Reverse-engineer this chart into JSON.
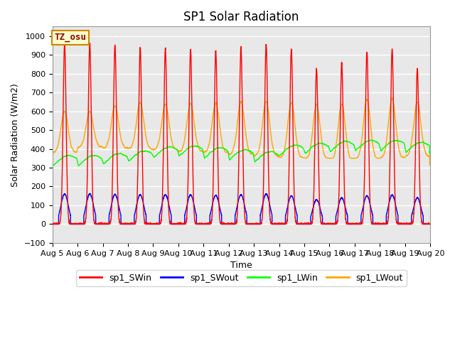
{
  "title": "SP1 Solar Radiation",
  "ylabel": "Solar Radiation (W/m2)",
  "xlabel": "Time",
  "ylim": [
    -100,
    1050
  ],
  "x_tick_labels": [
    "Aug 5",
    "Aug 6",
    "Aug 7",
    "Aug 8",
    "Aug 9",
    "Aug 10",
    "Aug 11",
    "Aug 12",
    "Aug 13",
    "Aug 14",
    "Aug 15",
    "Aug 16",
    "Aug 17",
    "Aug 18",
    "Aug 19",
    "Aug 20"
  ],
  "annotation_text": "TZ_osu",
  "annotation_bg": "#ffffcc",
  "annotation_border": "#cc8800",
  "background_color": "#e8e8e8",
  "grid_color": "white",
  "colors": {
    "sp1_SWin": "red",
    "sp1_SWout": "blue",
    "sp1_LWin": "lime",
    "sp1_LWout": "orange"
  },
  "legend_labels": [
    "sp1_SWin",
    "sp1_SWout",
    "sp1_LWin",
    "sp1_LWout"
  ],
  "sw_peaks": [
    960,
    960,
    950,
    935,
    935,
    930,
    920,
    940,
    955,
    930,
    825,
    855,
    915,
    930,
    825
  ],
  "sw_out_peaks": [
    160,
    160,
    158,
    156,
    156,
    155,
    153,
    156,
    160,
    150,
    130,
    140,
    150,
    155,
    140
  ],
  "lw_out_night": [
    380,
    410,
    405,
    400,
    395,
    385,
    380,
    370,
    360,
    350,
    340,
    330,
    340,
    350,
    360
  ],
  "lw_out_day_peaks": [
    600,
    600,
    630,
    650,
    640,
    645,
    645,
    650,
    655,
    650,
    640,
    640,
    665,
    670,
    650
  ],
  "lw_in_base": [
    325,
    325,
    335,
    350,
    370,
    375,
    365,
    355,
    345,
    380,
    390,
    400,
    405,
    405,
    395
  ]
}
